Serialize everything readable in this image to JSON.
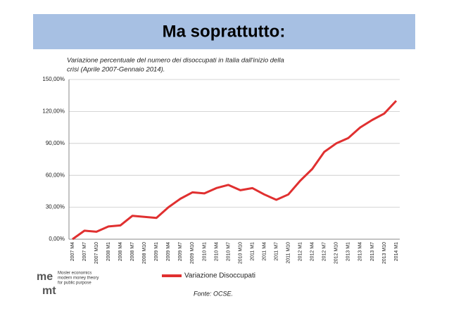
{
  "header": {
    "title": "Ma soprattutto:"
  },
  "chart_data": {
    "type": "line",
    "title": [
      "Variazione percentuale del numero dei disoccupati in Italia dall'inizio della",
      "crisi (Aprile 2007-Gennaio 2014)."
    ],
    "categories": [
      "2007 M4",
      "2007 M7",
      "2007 M10",
      "2008 M1",
      "2008 M4",
      "2008 M7",
      "2008 M10",
      "2009 M1",
      "2009 M4",
      "2009 M7",
      "2009 M10",
      "2010 M1",
      "2010 M4",
      "2010 M7",
      "2010 M10",
      "2011 M1",
      "2011 M4",
      "2011 M7",
      "2011 M10",
      "2012 M1",
      "2012 M4",
      "2012 M7",
      "2012 M10",
      "2013 M1",
      "2013 M4",
      "2013 M7",
      "2013 M10",
      "2014 M1"
    ],
    "series": [
      {
        "name": "Variazione Disoccupati",
        "color": "#e03030",
        "values": [
          0,
          8,
          7,
          12,
          13,
          22,
          21,
          20,
          30,
          38,
          44,
          43,
          48,
          51,
          46,
          48,
          42,
          37,
          42,
          55,
          66,
          82,
          90,
          95,
          105,
          112,
          118,
          130
        ]
      }
    ],
    "ylim": [
      0,
      150
    ],
    "yticks": [
      {
        "value": 0,
        "label": "0,00%"
      },
      {
        "value": 30,
        "label": "30,00%"
      },
      {
        "value": 60,
        "label": "60,00%"
      },
      {
        "value": 90,
        "label": "90,00%"
      },
      {
        "value": 120,
        "label": "120,00%"
      },
      {
        "value": 150,
        "label": "150,00%"
      }
    ],
    "grid": true,
    "legend": "bottom",
    "source": "Fonte: OCSE.",
    "annotations": [
      "Mosler economics",
      "modern money theory",
      "for public purpose"
    ]
  }
}
